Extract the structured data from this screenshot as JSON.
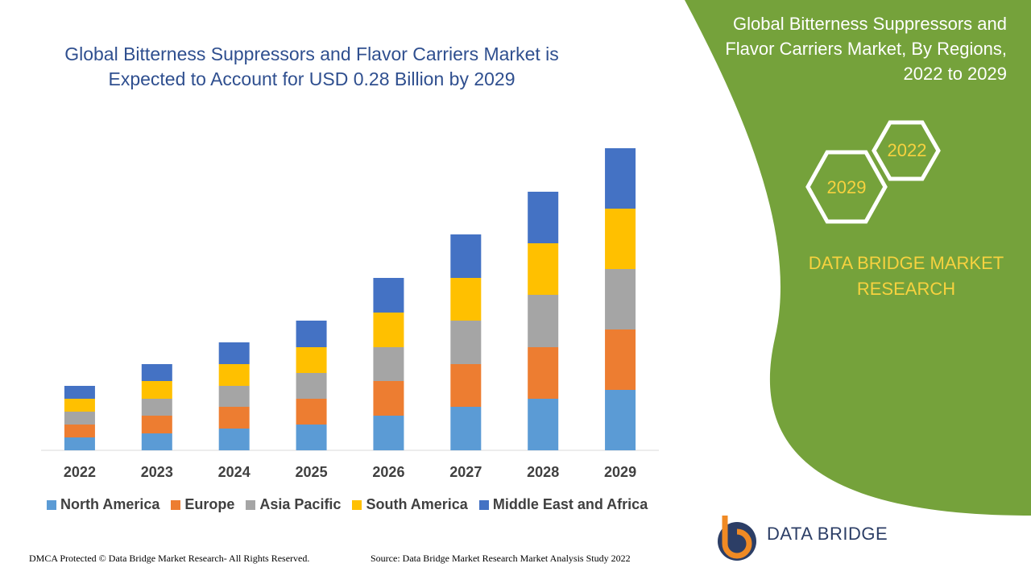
{
  "chart_data": {
    "type": "stacked_bar",
    "title": "Global Bitterness Suppressors and Flavor Carriers Market is Expected to Account for USD 0.28 Billion by 2029",
    "categories": [
      "2022",
      "2023",
      "2024",
      "2025",
      "2026",
      "2027",
      "2028",
      "2029"
    ],
    "ylim": [
      0,
      400
    ],
    "series": [
      {
        "name": "North America",
        "color": "#5b9bd5",
        "values": [
          16,
          21,
          27,
          32,
          43,
          54,
          64,
          75
        ]
      },
      {
        "name": "Europe",
        "color": "#ed7d31",
        "values": [
          16,
          22,
          27,
          32,
          43,
          53,
          64,
          75
        ]
      },
      {
        "name": "Asia Pacific",
        "color": "#a5a5a5",
        "values": [
          16,
          21,
          26,
          32,
          42,
          54,
          65,
          75
        ]
      },
      {
        "name": "South America",
        "color": "#ffc000",
        "values": [
          16,
          22,
          27,
          32,
          43,
          53,
          64,
          75
        ]
      },
      {
        "name": "Middle East and Africa",
        "color": "#4472c4",
        "values": [
          16,
          21,
          27,
          33,
          43,
          54,
          64,
          75
        ]
      }
    ]
  },
  "side_panel": {
    "title": "Global Bitterness Suppressors and Flavor Carriers Market, By Regions, 2022 to 2029",
    "hexagons": [
      "2022",
      "2029"
    ],
    "brand": "DATA BRIDGE MARKET RESEARCH"
  },
  "footer": {
    "copyright": "DMCA Protected © Data Bridge Market Research- All Rights Reserved.",
    "source": "Source: Data Bridge Market Research Market Analysis Study 2022"
  },
  "logo": {
    "text": "DATA BRIDGE"
  }
}
